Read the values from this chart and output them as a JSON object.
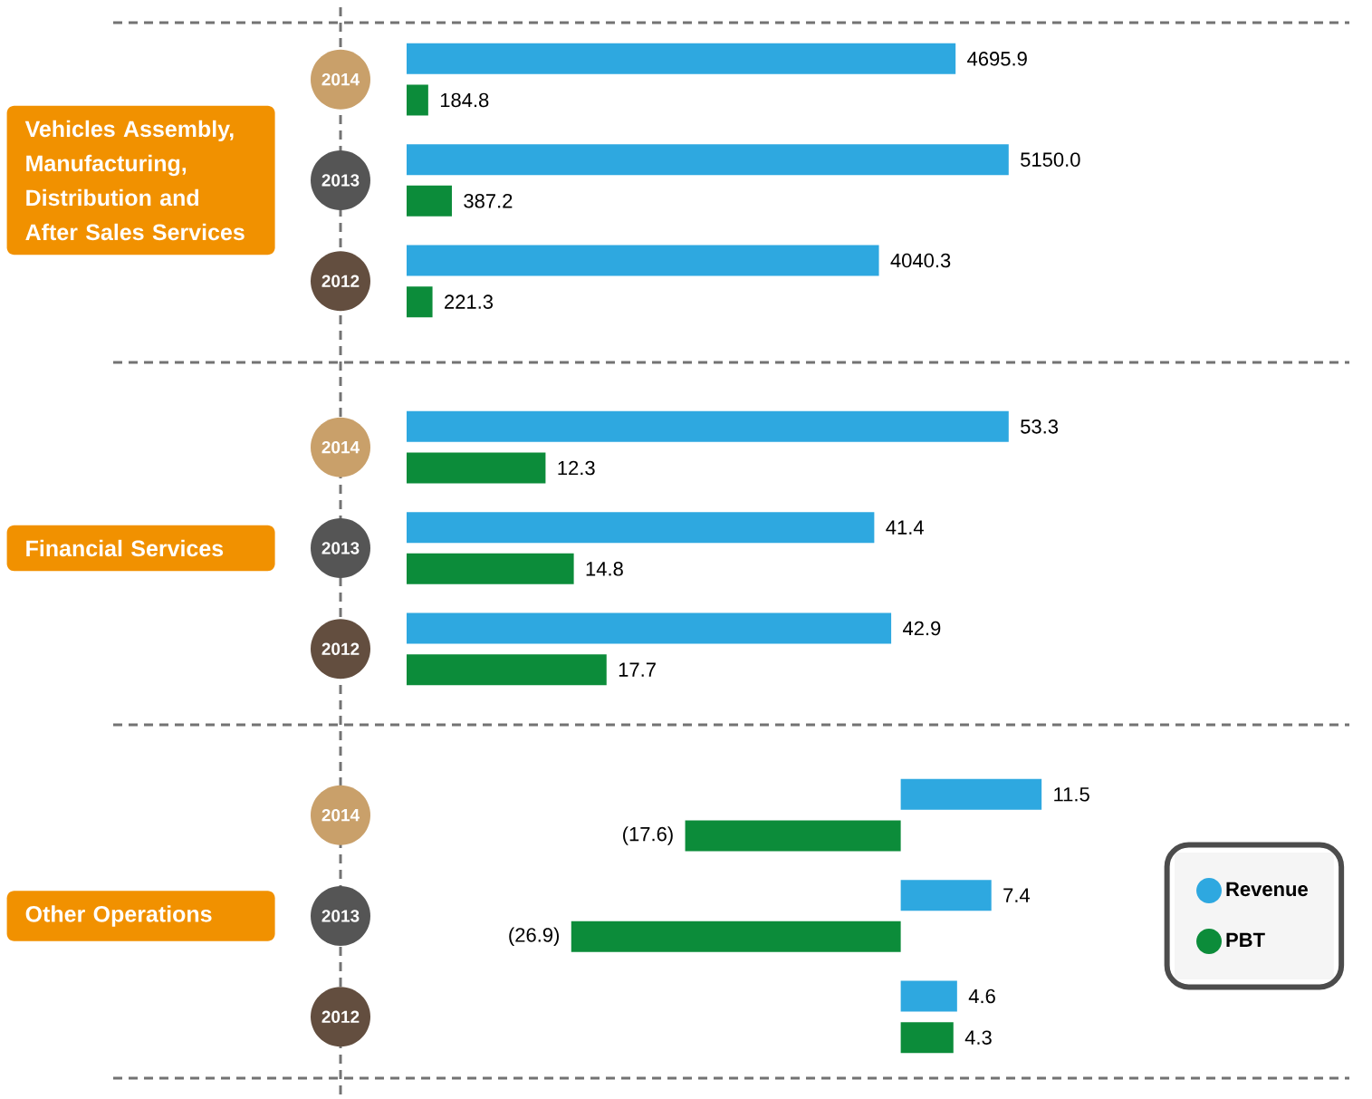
{
  "chart_data": [
    {
      "type": "bar",
      "orientation": "horizontal",
      "title": "Vehicles Assembly, Manufacturing, Distribution and After Sales Services",
      "categories": [
        "2014",
        "2013",
        "2012"
      ],
      "tick_labels": "y",
      "series": [
        {
          "color": "#2ea8e0",
          "values": [
            4695.9,
            5150.0,
            4040.3
          ],
          "value_labels": [
            "4695.9",
            "5150.0",
            "4040.3"
          ]
        },
        {
          "color": "#0c8c3a",
          "values": [
            184.8,
            387.2,
            221.3
          ],
          "value_labels": [
            "184.8",
            "387.2",
            "221.3"
          ]
        }
      ]
    },
    {
      "type": "bar",
      "orientation": "horizontal",
      "title": "Financial Services",
      "categories": [
        "2014",
        "2013",
        "2012"
      ],
      "tick_labels": "y",
      "series": [
        {
          "color": "#2ea8e0",
          "values": [
            53.3,
            41.4,
            42.9
          ],
          "value_labels": [
            "53.3",
            "41.4",
            "42.9"
          ]
        },
        {
          "color": "#0c8c3a",
          "values": [
            12.3,
            14.8,
            17.7
          ],
          "value_labels": [
            "12.3",
            "14.8",
            "17.7"
          ]
        }
      ]
    },
    {
      "type": "bar",
      "orientation": "horizontal",
      "title": "Other Operations",
      "categories": [
        "2014",
        "2013",
        "2012"
      ],
      "tick_labels": "y",
      "legend": "right",
      "series": [
        {
          "name": "Revenue",
          "color": "#2ea8e0",
          "values": [
            11.5,
            7.4,
            4.6
          ],
          "value_labels": [
            "11.5",
            "7.4",
            "4.6"
          ]
        },
        {
          "name": "PBT",
          "color": "#0c8c3a",
          "values": [
            -17.6,
            -26.9,
            4.3
          ],
          "value_labels": [
            "(17.6)",
            "(26.9)",
            "4.3"
          ]
        }
      ]
    }
  ]
}
